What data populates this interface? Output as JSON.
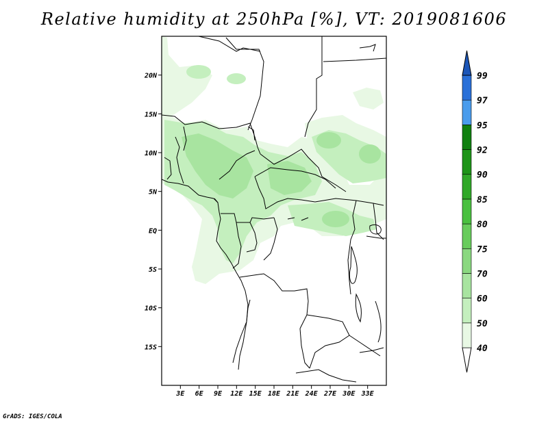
{
  "title": "Relative humidity at 250hPa [%], VT: 2019081606",
  "credit": "GrADS: IGES/COLA",
  "map": {
    "projection": "lat-lon",
    "lon_range": [
      0,
      36
    ],
    "lat_range": [
      -20,
      25
    ],
    "lat_ticks": [
      {
        "value": 20,
        "label": "20N"
      },
      {
        "value": 15,
        "label": "15N"
      },
      {
        "value": 10,
        "label": "10N"
      },
      {
        "value": 5,
        "label": "5N"
      },
      {
        "value": 0,
        "label": "EQ"
      },
      {
        "value": -5,
        "label": "5S"
      },
      {
        "value": -10,
        "label": "10S"
      },
      {
        "value": -15,
        "label": "15S"
      }
    ],
    "lon_ticks": [
      {
        "value": 3,
        "label": "3E"
      },
      {
        "value": 6,
        "label": "6E"
      },
      {
        "value": 9,
        "label": "9E"
      },
      {
        "value": 12,
        "label": "12E"
      },
      {
        "value": 15,
        "label": "15E"
      },
      {
        "value": 18,
        "label": "18E"
      },
      {
        "value": 21,
        "label": "21E"
      },
      {
        "value": 24,
        "label": "24E"
      },
      {
        "value": 27,
        "label": "27E"
      },
      {
        "value": 30,
        "label": "30E"
      },
      {
        "value": 33,
        "label": "33E"
      }
    ],
    "humidity_field_colors": {
      "40-50": "#e8f8e4",
      "50-60": "#c4efbe",
      "60-70": "#a8e4a0"
    }
  },
  "colorbar": {
    "levels": [
      "40",
      "50",
      "60",
      "70",
      "75",
      "80",
      "85",
      "90",
      "92",
      "95",
      "97",
      "99"
    ],
    "colors": [
      "#ffffff",
      "#e8f8e4",
      "#c4efbe",
      "#a8e4a0",
      "#8ad880",
      "#68cc5c",
      "#4ac040",
      "#30a828",
      "#1e9418",
      "#108010",
      "#4a9cec",
      "#2a70d8",
      "#1c56b8"
    ]
  }
}
